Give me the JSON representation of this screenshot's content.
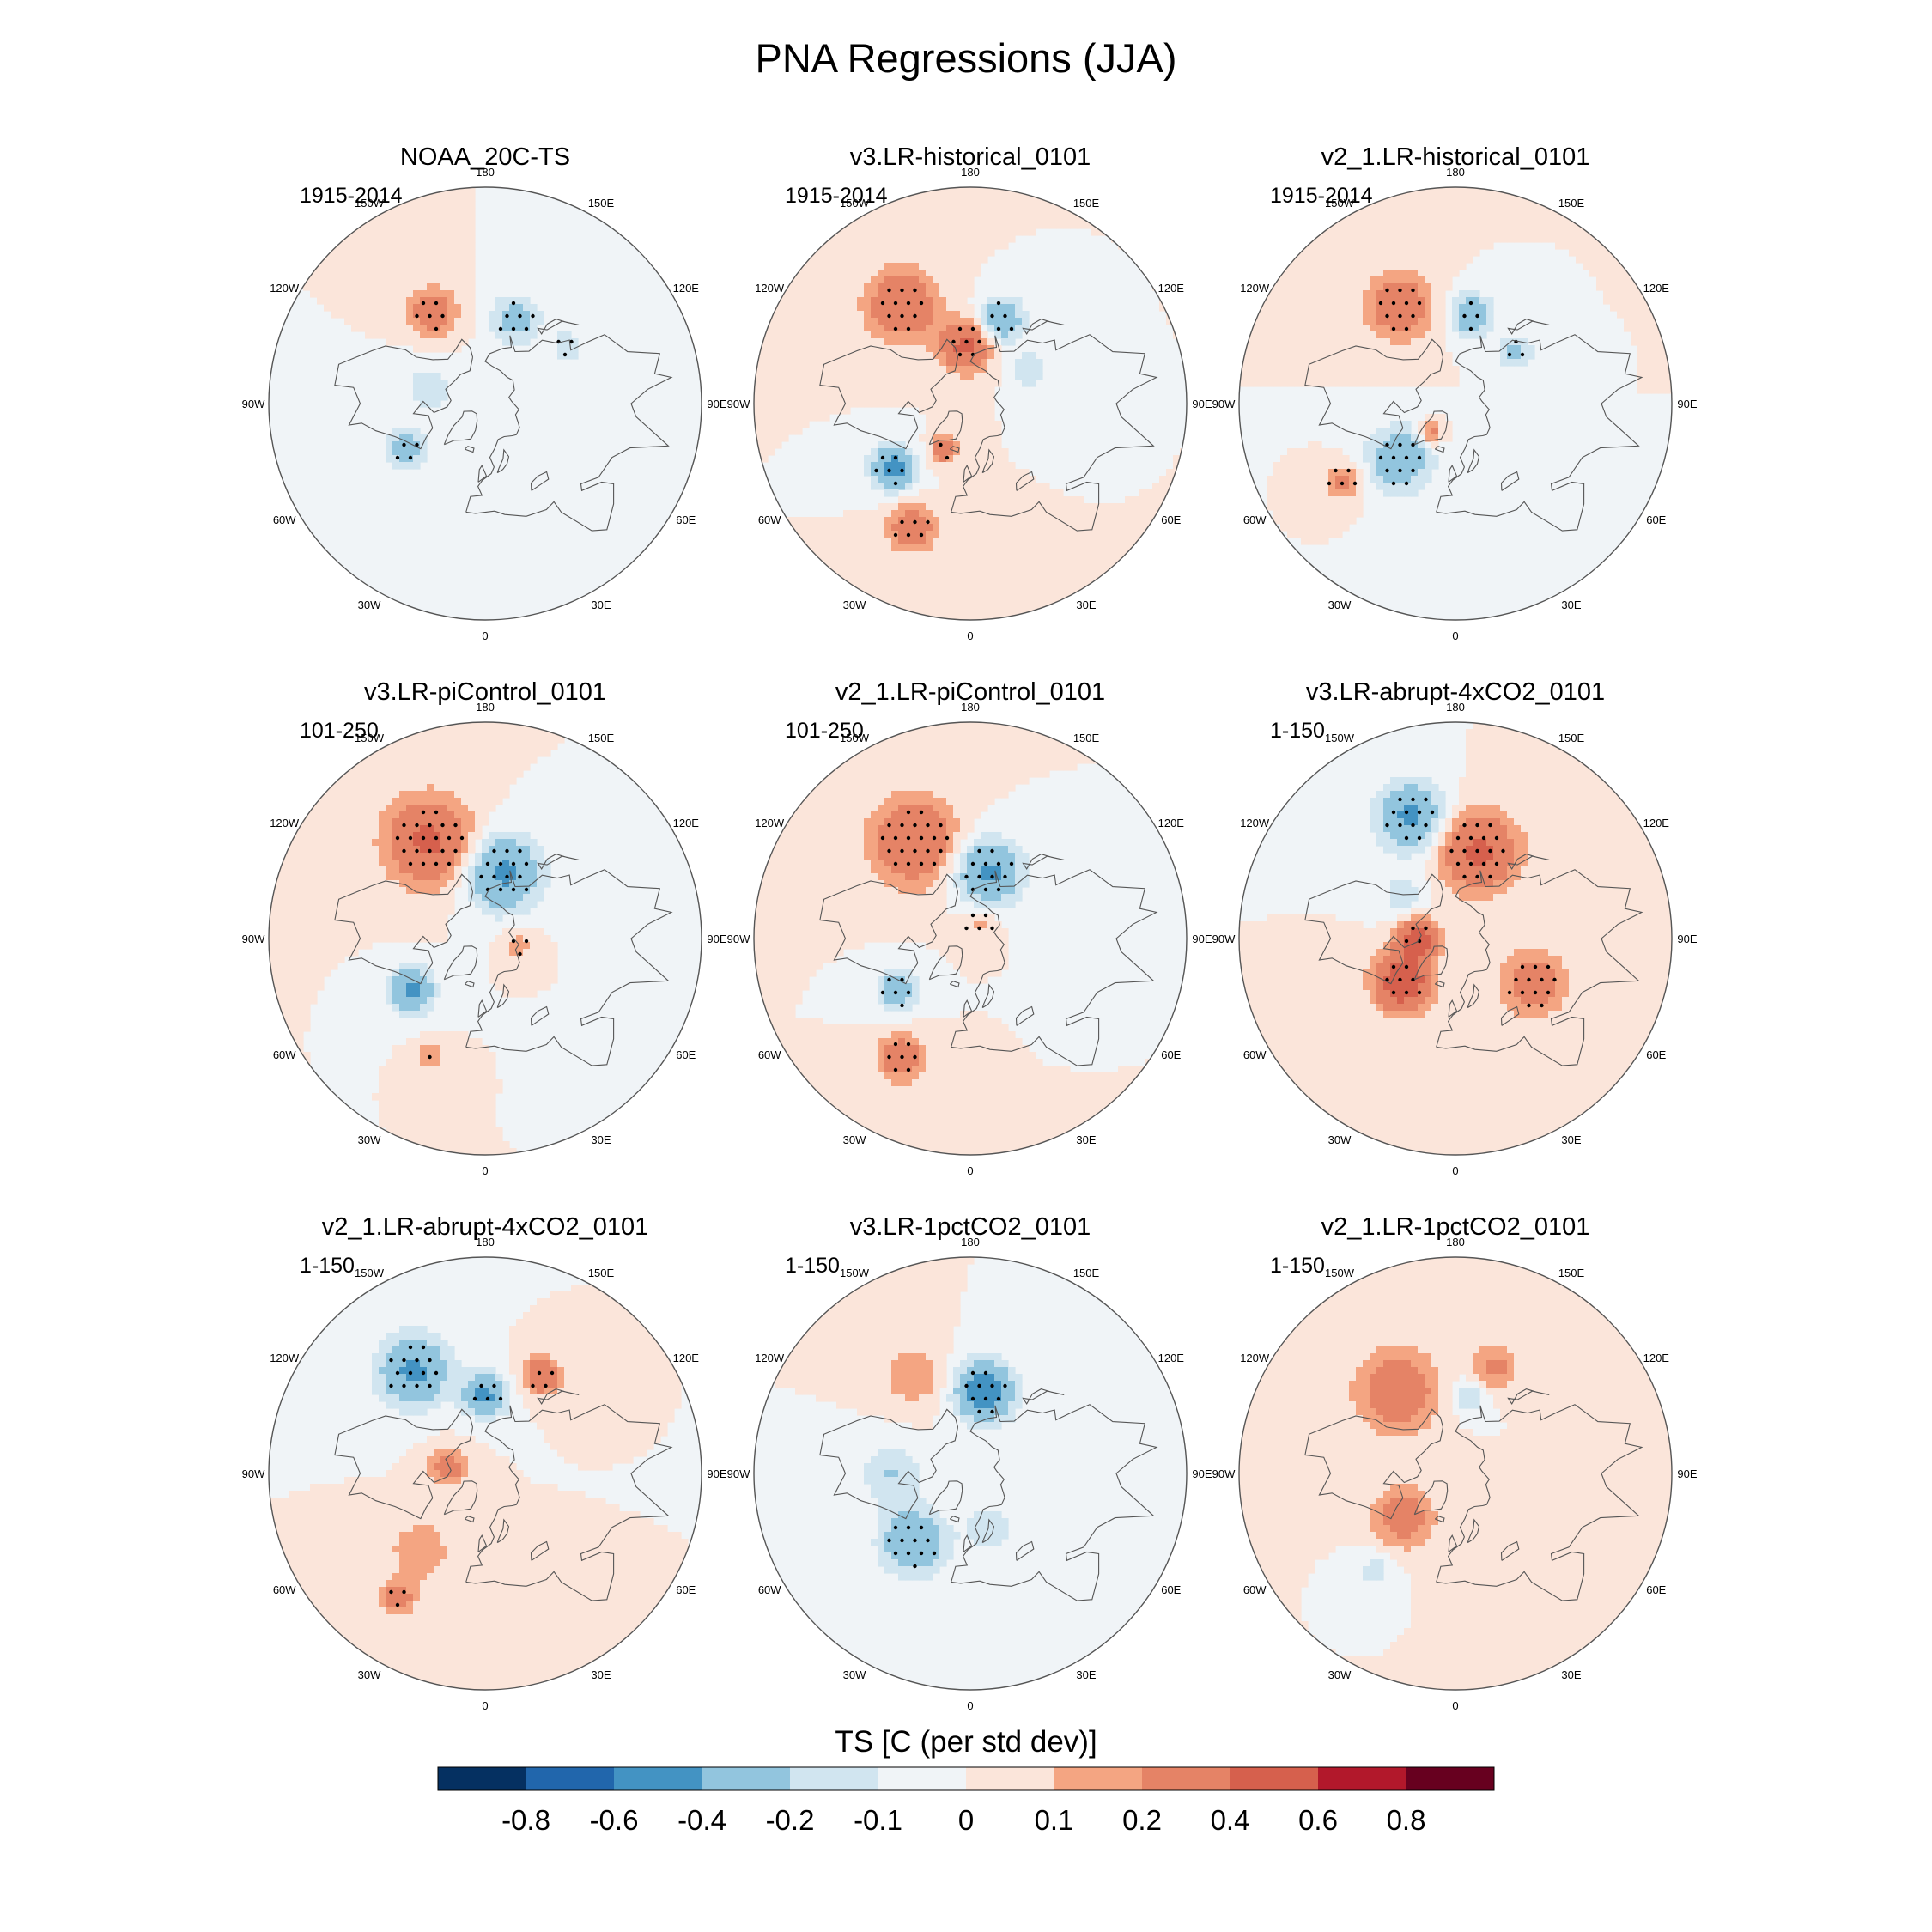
{
  "title": "PNA Regressions (JJA)",
  "colorbar": {
    "label": "TS [C (per std dev)]",
    "levels": [
      "-0.8",
      "-0.6",
      "-0.4",
      "-0.2",
      "-0.1",
      "0",
      "0.1",
      "0.2",
      "0.4",
      "0.6",
      "0.8"
    ],
    "colors": [
      "#053061",
      "#2166ac",
      "#4393c3",
      "#92c5de",
      "#d1e5f0",
      "#f0f4f7",
      "#fbe5da",
      "#f4a582",
      "#e58366",
      "#d6604d",
      "#b2182b",
      "#67001f"
    ]
  },
  "lon_labels": [
    "180",
    "150E",
    "120E",
    "90E",
    "60E",
    "30E",
    "0",
    "30W",
    "60W",
    "90W",
    "120W",
    "150W"
  ],
  "panels": [
    {
      "title": "NOAA_20C-TS",
      "period": "1915-2014",
      "blobs": [
        {
          "lon": -150,
          "lat": 38,
          "a": 0.35,
          "sx": 16,
          "sy": 12,
          "stip": true
        },
        {
          "lon": 160,
          "lat": 45,
          "a": -0.3,
          "sx": 20,
          "sy": 9,
          "stip": true
        },
        {
          "lon": -60,
          "lat": 45,
          "a": -0.3,
          "sx": 14,
          "sy": 10,
          "stip": true
        },
        {
          "lon": 125,
          "lat": 40,
          "a": -0.2,
          "sx": 10,
          "sy": 8,
          "stip": true
        },
        {
          "lon": -105,
          "lat": 60,
          "a": -0.15,
          "sx": 25,
          "sy": 10,
          "stip": false
        },
        {
          "lon": 40,
          "lat": 55,
          "a": -0.1,
          "sx": 30,
          "sy": 12,
          "stip": false
        }
      ]
    },
    {
      "title": "v3.LR-historical_0101",
      "period": "1915-2014",
      "blobs": [
        {
          "lon": -145,
          "lat": 32,
          "a": 0.4,
          "sx": 30,
          "sy": 12,
          "stip": true
        },
        {
          "lon": -175,
          "lat": 60,
          "a": 0.45,
          "sx": 22,
          "sy": 8,
          "stip": true
        },
        {
          "lon": 160,
          "lat": 45,
          "a": -0.4,
          "sx": 18,
          "sy": 8,
          "stip": true
        },
        {
          "lon": -50,
          "lat": 40,
          "a": -0.5,
          "sx": 14,
          "sy": 12,
          "stip": true
        },
        {
          "lon": -25,
          "lat": 25,
          "a": 0.35,
          "sx": 20,
          "sy": 8,
          "stip": true
        },
        {
          "lon": -30,
          "lat": 62,
          "a": 0.35,
          "sx": 10,
          "sy": 6,
          "stip": true
        },
        {
          "lon": 120,
          "lat": 55,
          "a": -0.2,
          "sx": 15,
          "sy": 8,
          "stip": false
        }
      ]
    },
    {
      "title": "v2_1.LR-historical_0101",
      "period": "1915-2014",
      "blobs": [
        {
          "lon": -150,
          "lat": 35,
          "a": 0.35,
          "sx": 28,
          "sy": 12,
          "stip": true
        },
        {
          "lon": 170,
          "lat": 45,
          "a": -0.35,
          "sx": 18,
          "sy": 8,
          "stip": true
        },
        {
          "lon": -45,
          "lat": 50,
          "a": -0.35,
          "sx": 25,
          "sy": 14,
          "stip": true
        },
        {
          "lon": -55,
          "lat": 25,
          "a": 0.25,
          "sx": 14,
          "sy": 8,
          "stip": true
        },
        {
          "lon": -40,
          "lat": 70,
          "a": 0.3,
          "sx": 8,
          "sy": 6,
          "stip": false
        },
        {
          "lon": 130,
          "lat": 50,
          "a": -0.25,
          "sx": 12,
          "sy": 8,
          "stip": true
        }
      ]
    },
    {
      "title": "v3.LR-piControl_0101",
      "period": "101-250",
      "blobs": [
        {
          "lon": -150,
          "lat": 35,
          "a": 0.45,
          "sx": 40,
          "sy": 12,
          "stip": true
        },
        {
          "lon": 165,
          "lat": 55,
          "a": -0.45,
          "sx": 35,
          "sy": 10,
          "stip": true
        },
        {
          "lon": -55,
          "lat": 45,
          "a": -0.45,
          "sx": 14,
          "sy": 12,
          "stip": false
        },
        {
          "lon": -25,
          "lat": 28,
          "a": 0.2,
          "sx": 10,
          "sy": 6,
          "stip": true
        },
        {
          "lon": 80,
          "lat": 72,
          "a": 0.15,
          "sx": 12,
          "sy": 8,
          "stip": true
        }
      ]
    },
    {
      "title": "v2_1.LR-piControl_0101",
      "period": "101-250",
      "blobs": [
        {
          "lon": -150,
          "lat": 35,
          "a": 0.4,
          "sx": 40,
          "sy": 12,
          "stip": true
        },
        {
          "lon": 165,
          "lat": 55,
          "a": -0.45,
          "sx": 30,
          "sy": 10,
          "stip": true
        },
        {
          "lon": -55,
          "lat": 45,
          "a": -0.3,
          "sx": 14,
          "sy": 12,
          "stip": true
        },
        {
          "lon": -30,
          "lat": 25,
          "a": 0.35,
          "sx": 20,
          "sy": 8,
          "stip": true
        },
        {
          "lon": 150,
          "lat": 80,
          "a": 0.15,
          "sx": 15,
          "sy": 8,
          "stip": true
        }
      ]
    },
    {
      "title": "v3.LR-abrupt-4xCO2_0101",
      "period": "1-150",
      "blobs": [
        {
          "lon": -160,
          "lat": 28,
          "a": -0.45,
          "sx": 30,
          "sy": 10,
          "stip": true
        },
        {
          "lon": 165,
          "lat": 45,
          "a": 0.45,
          "sx": 35,
          "sy": 12,
          "stip": true
        },
        {
          "lon": -50,
          "lat": 55,
          "a": 0.6,
          "sx": 20,
          "sy": 14,
          "stip": true
        },
        {
          "lon": -90,
          "lat": 70,
          "a": 0.55,
          "sx": 15,
          "sy": 8,
          "stip": true
        },
        {
          "lon": 60,
          "lat": 45,
          "a": 0.3,
          "sx": 30,
          "sy": 10,
          "stip": true
        },
        {
          "lon": -130,
          "lat": 55,
          "a": -0.15,
          "sx": 20,
          "sy": 8,
          "stip": false
        }
      ]
    },
    {
      "title": "v2_1.LR-abrupt-4xCO2_0101",
      "period": "1-150",
      "blobs": [
        {
          "lon": -145,
          "lat": 30,
          "a": -0.45,
          "sx": 30,
          "sy": 12,
          "stip": true
        },
        {
          "lon": 180,
          "lat": 50,
          "a": -0.45,
          "sx": 18,
          "sy": 8,
          "stip": true
        },
        {
          "lon": 150,
          "lat": 35,
          "a": 0.4,
          "sx": 14,
          "sy": 8,
          "stip": true
        },
        {
          "lon": -40,
          "lat": 40,
          "a": 0.2,
          "sx": 25,
          "sy": 10,
          "stip": false
        },
        {
          "lon": -35,
          "lat": 20,
          "a": 0.3,
          "sx": 15,
          "sy": 6,
          "stip": true
        },
        {
          "lon": -100,
          "lat": 70,
          "a": 0.3,
          "sx": 15,
          "sy": 8,
          "stip": false
        }
      ]
    },
    {
      "title": "v3.LR-1pctCO2_0101",
      "period": "1-150",
      "blobs": [
        {
          "lon": 170,
          "lat": 48,
          "a": -0.55,
          "sx": 25,
          "sy": 10,
          "stip": true
        },
        {
          "lon": -40,
          "lat": 45,
          "a": -0.4,
          "sx": 25,
          "sy": 14,
          "stip": true
        },
        {
          "lon": -150,
          "lat": 35,
          "a": 0.2,
          "sx": 25,
          "sy": 10,
          "stip": false
        },
        {
          "lon": -90,
          "lat": 50,
          "a": -0.2,
          "sx": 25,
          "sy": 12,
          "stip": false
        },
        {
          "lon": 20,
          "lat": 60,
          "a": -0.15,
          "sx": 25,
          "sy": 10,
          "stip": false
        }
      ]
    },
    {
      "title": "v2_1.LR-1pctCO2_0101",
      "period": "1-150",
      "blobs": [
        {
          "lon": -145,
          "lat": 40,
          "a": 0.35,
          "sx": 35,
          "sy": 14,
          "stip": false
        },
        {
          "lon": 170,
          "lat": 50,
          "a": -0.2,
          "sx": 15,
          "sy": 8,
          "stip": false
        },
        {
          "lon": 160,
          "lat": 35,
          "a": 0.25,
          "sx": 20,
          "sy": 8,
          "stip": false
        },
        {
          "lon": -50,
          "lat": 55,
          "a": 0.3,
          "sx": 25,
          "sy": 12,
          "stip": false
        },
        {
          "lon": -40,
          "lat": 30,
          "a": -0.15,
          "sx": 15,
          "sy": 8,
          "stip": false
        }
      ]
    }
  ]
}
